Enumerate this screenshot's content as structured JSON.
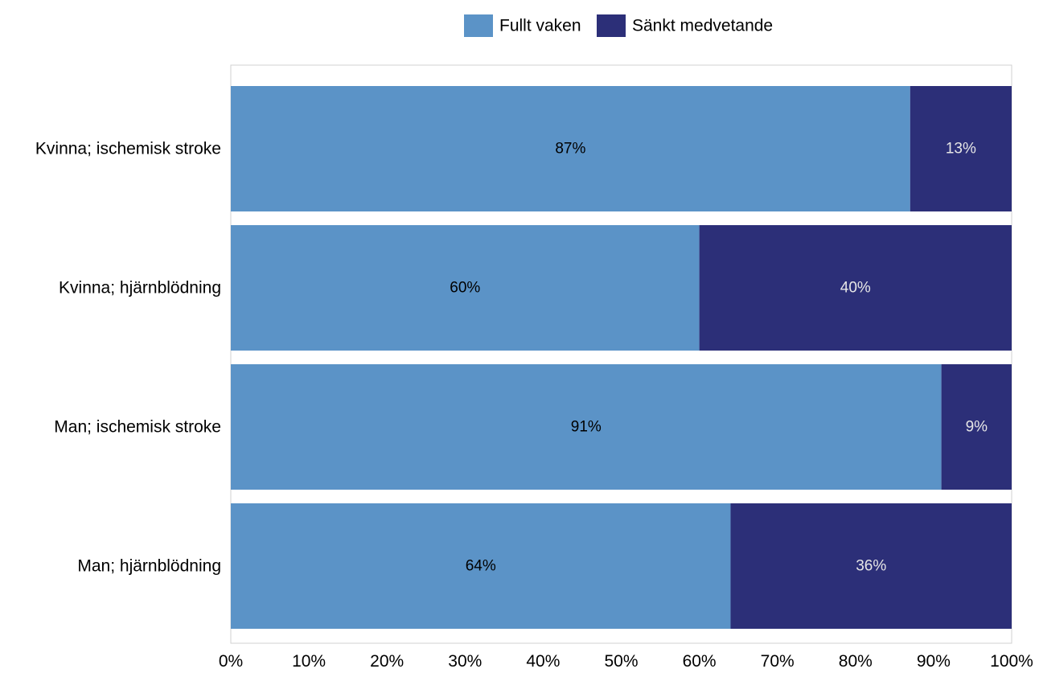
{
  "chart_data": {
    "type": "bar",
    "orientation": "horizontal",
    "stacked": true,
    "percent_scale": true,
    "categories": [
      "Kvinna; ischemisk stroke",
      "Kvinna; hjärnblödning",
      "Man; ischemisk stroke",
      "Man; hjärnblödning"
    ],
    "series": [
      {
        "name": "Fullt vaken",
        "color": "#5b93c7",
        "label_color": "#000000",
        "values": [
          87,
          60,
          91,
          64
        ],
        "labels": [
          "87%",
          "60%",
          "91%",
          "64%"
        ]
      },
      {
        "name": "Sänkt medvetande",
        "color": "#2c2f78",
        "label_color": "#e6e6e6",
        "values": [
          13,
          40,
          9,
          36
        ],
        "labels": [
          "13%",
          "40%",
          "9%",
          "36%"
        ]
      }
    ],
    "xlim": [
      0,
      100
    ],
    "x_ticks": [
      "0%",
      "10%",
      "20%",
      "30%",
      "40%",
      "50%",
      "60%",
      "70%",
      "80%",
      "90%",
      "100%"
    ],
    "xlabel": "",
    "ylabel": "",
    "grid": false,
    "legend_position": "top"
  }
}
